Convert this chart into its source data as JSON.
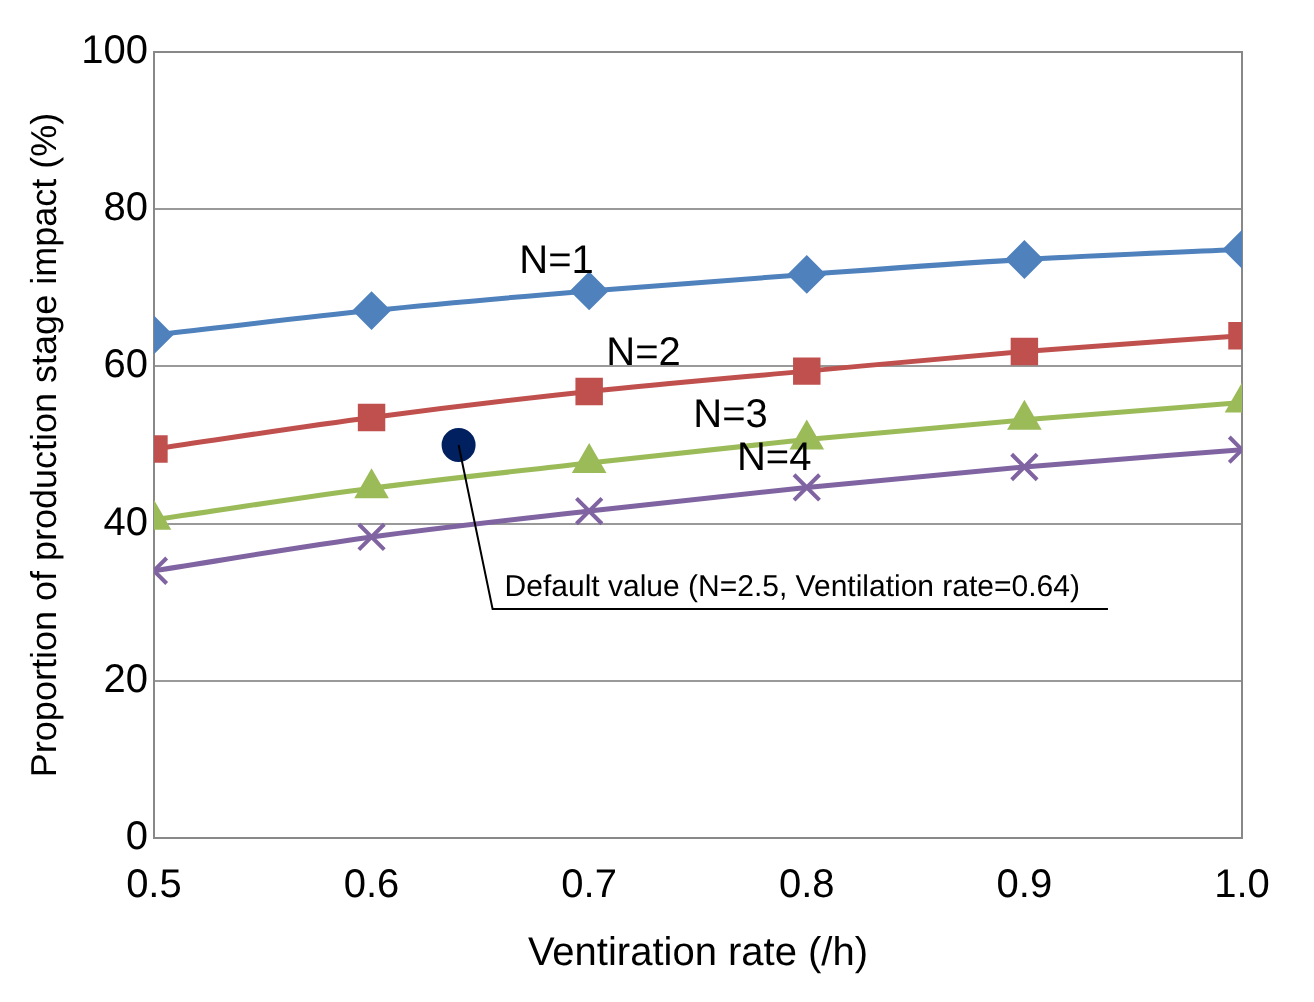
{
  "chart_data": {
    "type": "line",
    "xlabel": "Ventiration rate (/h)",
    "ylabel": "Proportion of production stage impact (%)",
    "x": [
      0.5,
      0.6,
      0.7,
      0.8,
      0.9,
      1.0
    ],
    "series": [
      {
        "name": "N=1",
        "color": "#4f81bd",
        "marker": "diamond",
        "values": [
          64,
          67.1,
          69.6,
          71.7,
          73.6,
          74.9
        ]
      },
      {
        "name": "N=2",
        "color": "#c0504d",
        "marker": "square",
        "values": [
          49.5,
          53.5,
          56.8,
          59.4,
          61.9,
          63.9
        ]
      },
      {
        "name": "N=3",
        "color": "#9bbb59",
        "marker": "triangle",
        "values": [
          40.5,
          44.5,
          47.7,
          50.7,
          53.2,
          55.4
        ]
      },
      {
        "name": "N=4",
        "color": "#8064a2",
        "marker": "cross",
        "values": [
          34,
          38.3,
          41.6,
          44.6,
          47.2,
          49.4
        ]
      },
      {
        "type": "scatter",
        "color": "#002060",
        "marker": "circle",
        "x": [
          0.64
        ],
        "values": [
          50
        ]
      }
    ],
    "annotations": [
      {
        "text": "Default value (N=2.5, Ventilation rate=0.64)",
        "x": 0.64,
        "y": 50
      }
    ],
    "xlim": [
      0.5,
      1.0
    ],
    "xticks": [
      0.5,
      0.6,
      0.7,
      0.8,
      0.9,
      {
        "value": 1.0,
        "label": "1.0"
      }
    ],
    "ylim": [
      0,
      100
    ],
    "yticks": [
      0,
      20,
      40,
      60,
      80,
      100
    ],
    "grid": "y",
    "legend": false,
    "line_style": "solid"
  }
}
